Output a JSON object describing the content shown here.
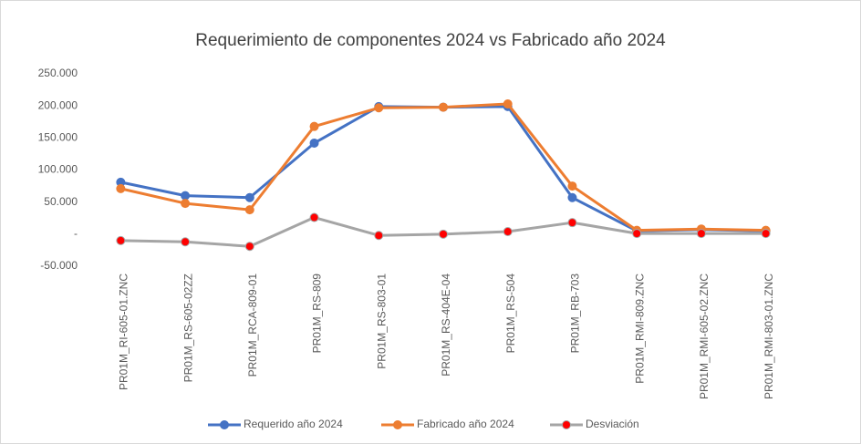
{
  "chart_data": {
    "type": "line",
    "title": "Requerimiento de componentes 2024 vs Fabricado año 2024",
    "categories": [
      "PR01M_RI-605-01.ZNC",
      "PR01M_RS-605-02ZZ",
      "PR01M_RCA-809-01",
      "PR01M_RS-809",
      "PR01M_RS-803-01",
      "PR01M_RS-404E-04",
      "PR01M_RS-504",
      "PR01M_RB-703",
      "PR01M_RMI-809.ZNC",
      "PR01M_RMI-605-02.ZNC",
      "PR01M_RMI-803-01.ZNC"
    ],
    "series": [
      {
        "name": "Requerido año 2024",
        "color": "#4472c4",
        "marker_color": "#4472c4",
        "values": [
          81000,
          60000,
          57000,
          142000,
          199000,
          198000,
          199000,
          57000,
          5000,
          7000,
          5000
        ]
      },
      {
        "name": "Fabricado año 2024",
        "color": "#ed7d31",
        "marker_color": "#ed7d31",
        "values": [
          71000,
          48000,
          38000,
          168000,
          197000,
          198000,
          203000,
          75000,
          6000,
          8000,
          6000
        ]
      },
      {
        "name": "Desviación",
        "color": "#a5a5a5",
        "marker_color": "#ff0000",
        "values": [
          -10000,
          -12000,
          -19000,
          26000,
          -2000,
          0,
          4000,
          18000,
          1000,
          1000,
          1000
        ]
      }
    ],
    "ylim": [
      -50000,
      250000
    ],
    "yticks": [
      {
        "value": -50000,
        "label": "-50.000"
      },
      {
        "value": 0,
        "label": "-"
      },
      {
        "value": 50000,
        "label": "50.000"
      },
      {
        "value": 100000,
        "label": "100.000"
      },
      {
        "value": 150000,
        "label": "150.000"
      },
      {
        "value": 200000,
        "label": "200.000"
      },
      {
        "value": 250000,
        "label": "250.000"
      }
    ],
    "grid": false,
    "legend": "bottom"
  }
}
